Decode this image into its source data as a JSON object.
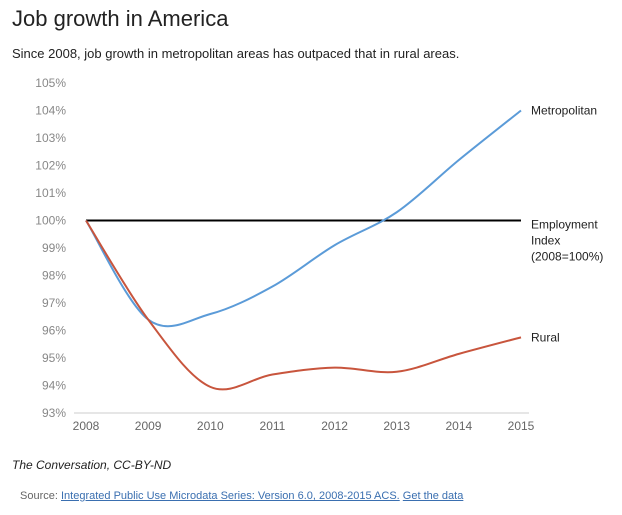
{
  "header": {
    "title": "Job growth in America",
    "subtitle": "Since 2008, job growth in metropolitan areas has outpaced that in rural areas."
  },
  "chart_data": {
    "type": "line",
    "x": [
      2008,
      2009,
      2010,
      2011,
      2012,
      2013,
      2014,
      2015
    ],
    "xlim": [
      2008,
      2015
    ],
    "xticks": [
      2008,
      2009,
      2010,
      2011,
      2012,
      2013,
      2014,
      2015
    ],
    "ylim": [
      93,
      105
    ],
    "yticks": [
      {
        "value": 93,
        "label": "93%"
      },
      {
        "value": 94,
        "label": "94%"
      },
      {
        "value": 95,
        "label": "95%"
      },
      {
        "value": 96,
        "label": "96%"
      },
      {
        "value": 97,
        "label": "97%"
      },
      {
        "value": 98,
        "label": "98%"
      },
      {
        "value": 99,
        "label": "99%"
      },
      {
        "value": 100,
        "label": "100%"
      },
      {
        "value": 101,
        "label": "101%"
      },
      {
        "value": 102,
        "label": "102%"
      },
      {
        "value": 103,
        "label": "103%"
      },
      {
        "value": 104,
        "label": "104%"
      },
      {
        "value": 105,
        "label": "105%"
      }
    ],
    "series": [
      {
        "name": "Metropolitan",
        "color": "#5b9bd8",
        "values": [
          100,
          96.4,
          96.6,
          97.6,
          99.1,
          100.3,
          102.2,
          104.0
        ]
      },
      {
        "name": "Rural",
        "color": "#c8553d",
        "values": [
          100,
          96.4,
          93.95,
          94.4,
          94.65,
          94.5,
          95.15,
          95.75
        ]
      }
    ],
    "reference_line": {
      "value": 100,
      "color": "#000000",
      "label_lines": [
        "Employment",
        "Index",
        "(2008=100%)"
      ]
    }
  },
  "footer": {
    "credit": "The Conversation, CC-BY-ND",
    "source_prefix": "Source:",
    "source_link": "Integrated Public Use Microdata Series: Version 6.0, 2008-2015 ACS.",
    "data_link": "Get the data"
  }
}
